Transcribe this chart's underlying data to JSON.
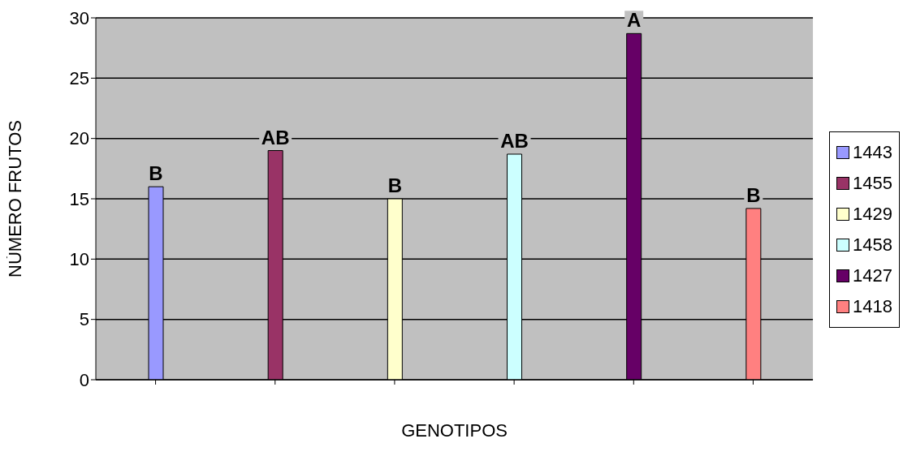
{
  "chart_data": {
    "type": "bar",
    "xlabel": "GENOTIPOS",
    "ylabel": "NÙMERO  FRUTOS",
    "categories": [
      null,
      null,
      null,
      null,
      null,
      null
    ],
    "series": [
      {
        "name": "1443",
        "color": "#9999ff",
        "values": [
          16,
          null,
          null,
          null,
          null,
          null
        ]
      },
      {
        "name": "1455",
        "color": "#993366",
        "values": [
          null,
          19,
          null,
          null,
          null,
          null
        ]
      },
      {
        "name": "1429",
        "color": "#ffffcc",
        "values": [
          null,
          null,
          15,
          null,
          null,
          null
        ]
      },
      {
        "name": "1458",
        "color": "#ccffff",
        "values": [
          null,
          null,
          null,
          18.7,
          null,
          null
        ]
      },
      {
        "name": "1427",
        "color": "#660066",
        "values": [
          null,
          null,
          null,
          null,
          28.7,
          null
        ]
      },
      {
        "name": "1418",
        "color": "#ff8080",
        "values": [
          null,
          null,
          null,
          null,
          null,
          14.2
        ]
      }
    ],
    "annotations": [
      "B",
      "AB",
      "B",
      "AB",
      "A",
      "B"
    ],
    "ylim": [
      0,
      30
    ],
    "yticks": [
      0,
      5,
      10,
      15,
      20,
      25,
      30
    ],
    "grid": "y",
    "legend": "right"
  }
}
